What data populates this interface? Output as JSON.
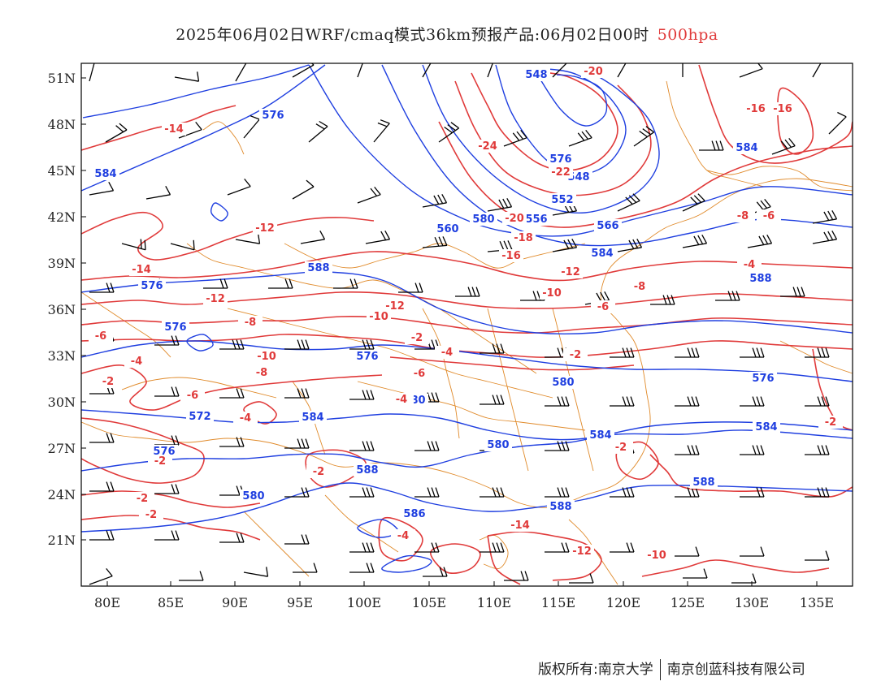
{
  "title": {
    "main": "2025年06月02日WRF/cmaq模式36km预报产品:06月02日00时",
    "level": "500hpa"
  },
  "axes": {
    "lat_labels": [
      "51N",
      "48N",
      "45N",
      "42N",
      "39N",
      "36N",
      "33N",
      "30N",
      "27N",
      "24N",
      "21N"
    ],
    "lon_labels": [
      "80E",
      "85E",
      "90E",
      "95E",
      "100E",
      "105E",
      "110E",
      "115E",
      "120E",
      "125E",
      "130E",
      "135E"
    ]
  },
  "colors": {
    "height_contour": "#1f3fe0",
    "temperature_contour": "#e03a3a",
    "boundary": "#e08a2a",
    "wind_barb": "#000000"
  },
  "contour_labels": {
    "height": [
      "548",
      "576",
      "576",
      "548",
      "552",
      "556",
      "560",
      "566",
      "584",
      "588",
      "576",
      "576",
      "576",
      "572",
      "576",
      "580",
      "576",
      "580",
      "580",
      "584",
      "584",
      "580",
      "588",
      "584",
      "586",
      "588",
      "588",
      "584",
      "588",
      "580",
      "584",
      "584",
      "580"
    ],
    "temperature": [
      "-20",
      "-14",
      "-16",
      "-16",
      "-24",
      "-22",
      "-20",
      "-18",
      "-12",
      "-16",
      "-12",
      "-14",
      "-12",
      "-10",
      "-8",
      "-6",
      "-12",
      "-10",
      "-8",
      "-6",
      "-4",
      "-2",
      "-4",
      "-2",
      "-10",
      "-8",
      "-6",
      "-4",
      "-2",
      "-6",
      "-4",
      "-2",
      "-2",
      "-2",
      "-2",
      "-2",
      "-2",
      "-4",
      "-14",
      "-12",
      "-10",
      "-8",
      "-6",
      "-4"
    ]
  },
  "footer": {
    "owner_label": "版权所有:",
    "org1": "南京大学",
    "org2": "南京创蓝科技有限公司"
  }
}
